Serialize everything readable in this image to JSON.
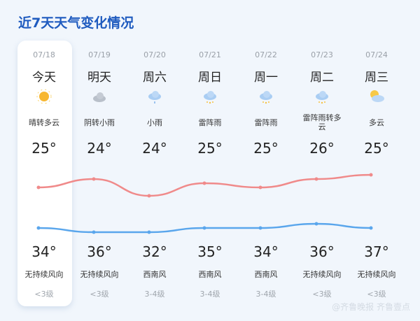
{
  "title": "近7天天气变化情况",
  "colors": {
    "high_line": "#f08a8a",
    "low_line": "#5aa6ec",
    "title": "#1f5bbf"
  },
  "days": [
    {
      "date": "07/18",
      "day": "今天",
      "icon": "sunny-icon",
      "desc": "晴转多云",
      "low": "25°",
      "high": "34°",
      "wind": "无持续风向",
      "level": "<3级",
      "low_v": 25,
      "high_v": 34
    },
    {
      "date": "07/19",
      "day": "明天",
      "icon": "overcast-icon",
      "desc": "阴转小雨",
      "low": "24°",
      "high": "36°",
      "wind": "无持续风向",
      "level": "<3级",
      "low_v": 24,
      "high_v": 36
    },
    {
      "date": "07/20",
      "day": "周六",
      "icon": "light-rain-icon",
      "desc": "小雨",
      "low": "24°",
      "high": "32°",
      "wind": "西南风",
      "level": "3-4级",
      "low_v": 24,
      "high_v": 32
    },
    {
      "date": "07/21",
      "day": "周日",
      "icon": "thunderstorm-icon",
      "desc": "雷阵雨",
      "low": "25°",
      "high": "35°",
      "wind": "西南风",
      "level": "3-4级",
      "low_v": 25,
      "high_v": 35
    },
    {
      "date": "07/22",
      "day": "周一",
      "icon": "thunderstorm-icon",
      "desc": "雷阵雨",
      "low": "25°",
      "high": "34°",
      "wind": "西南风",
      "level": "3-4级",
      "low_v": 25,
      "high_v": 34
    },
    {
      "date": "07/23",
      "day": "周二",
      "icon": "thunderstorm-icon",
      "desc": "雷阵雨转多云",
      "low": "26°",
      "high": "36°",
      "wind": "无持续风向",
      "level": "<3级",
      "low_v": 26,
      "high_v": 36
    },
    {
      "date": "07/24",
      "day": "周三",
      "icon": "partly-cloudy-icon",
      "desc": "多云",
      "low": "25°",
      "high": "37°",
      "wind": "无持续风向",
      "level": "<3级",
      "low_v": 25,
      "high_v": 37
    }
  ],
  "watermark": "@齐鲁晚报 齐鲁壹点"
}
